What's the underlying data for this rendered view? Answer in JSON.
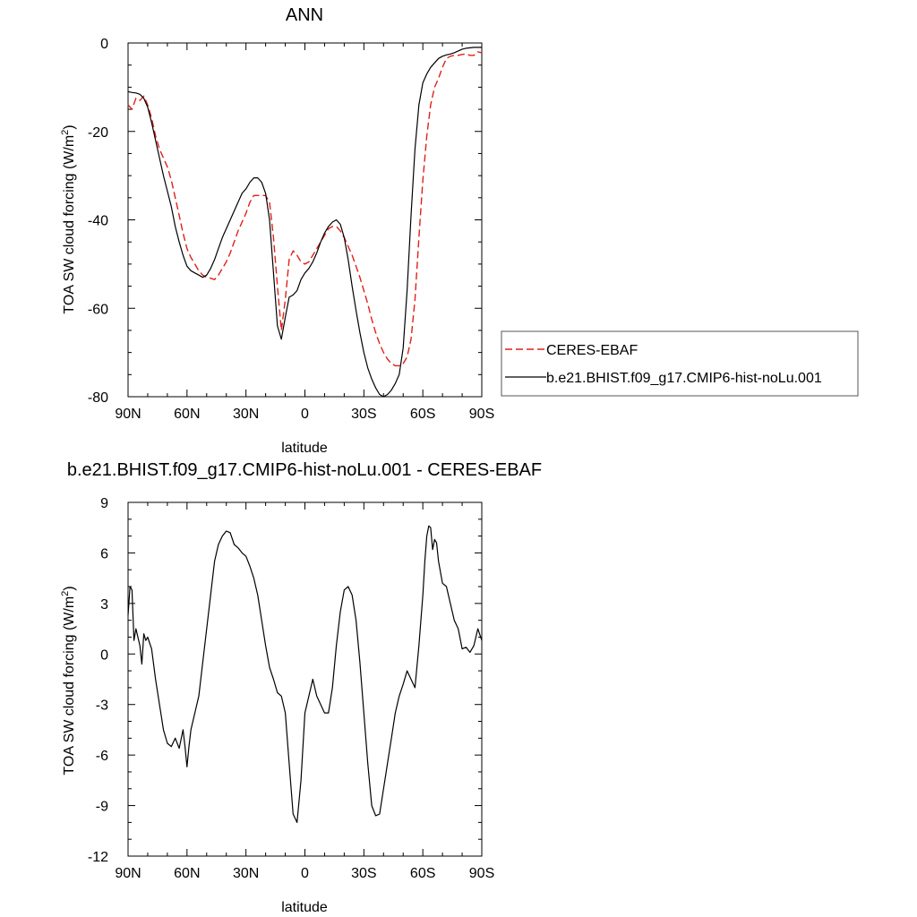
{
  "chart_data": [
    {
      "type": "line",
      "title": "ANN",
      "xlabel": "latitude",
      "ylabel_main": "TOA SW cloud forcing (W/m",
      "ylabel_sup": "2",
      "ylabel_close": ")",
      "xlim": [
        90,
        -90
      ],
      "ylim": [
        -80,
        0
      ],
      "x_ticks": [
        90,
        60,
        30,
        0,
        -30,
        -60,
        -90
      ],
      "x_tick_labels": [
        "90N",
        "60N",
        "30N",
        "0",
        "30S",
        "60S",
        "90S"
      ],
      "y_ticks": [
        0,
        -20,
        -40,
        -60,
        -80
      ],
      "y_tick_labels": [
        "0",
        "-20",
        "-40",
        "-60",
        "-80"
      ],
      "legend_position": "right-outside",
      "series": [
        {
          "name": "CERES-EBAF",
          "color": "#e0201a",
          "dash": "dashed",
          "x": [
            90,
            88,
            86,
            84,
            82,
            80,
            78,
            76,
            74,
            72,
            70,
            68,
            66,
            64,
            62,
            60,
            58,
            56,
            54,
            52,
            50,
            48,
            46,
            44,
            42,
            40,
            38,
            36,
            34,
            32,
            30,
            28,
            26,
            24,
            22,
            20,
            18,
            16,
            14,
            12,
            10,
            8,
            6,
            4,
            2,
            0,
            -2,
            -4,
            -6,
            -8,
            -10,
            -12,
            -14,
            -16,
            -18,
            -20,
            -22,
            -24,
            -26,
            -28,
            -30,
            -32,
            -34,
            -36,
            -38,
            -40,
            -42,
            -44,
            -46,
            -48,
            -50,
            -52,
            -54,
            -56,
            -58,
            -60,
            -62,
            -64,
            -66,
            -68,
            -70,
            -72,
            -74,
            -76,
            -78,
            -80,
            -82,
            -84,
            -86,
            -88,
            -90
          ],
          "y": [
            -14,
            -15,
            -12.5,
            -13,
            -12,
            -14,
            -17,
            -21,
            -24,
            -26,
            -28,
            -31,
            -35,
            -39,
            -43,
            -46.5,
            -48.5,
            -50,
            -51.5,
            -52.5,
            -53,
            -53.2,
            -53.5,
            -52.5,
            -51,
            -49.5,
            -47.5,
            -45,
            -42.5,
            -40.5,
            -38.5,
            -36,
            -34.5,
            -34.5,
            -34.5,
            -34.5,
            -36,
            -44,
            -55,
            -65,
            -58,
            -49,
            -47,
            -48,
            -49.5,
            -50,
            -49.5,
            -48,
            -46.5,
            -45,
            -43.5,
            -42,
            -41.5,
            -41.5,
            -42.5,
            -44,
            -46,
            -48,
            -50.5,
            -53,
            -56,
            -59,
            -62.5,
            -65.5,
            -68,
            -70,
            -71.5,
            -72.5,
            -73,
            -73,
            -72.5,
            -71,
            -67,
            -58,
            -44,
            -31,
            -21,
            -14,
            -10,
            -8,
            -5.5,
            -3.5,
            -3,
            -2.8,
            -2.8,
            -2.6,
            -2.5,
            -2.8,
            -2.8,
            -2,
            -2.2
          ]
        },
        {
          "name": "b.e21.BHIST.f09_g17.CMIP6-hist-noLu.001",
          "color": "#000000",
          "dash": "solid",
          "x": [
            90,
            88,
            86,
            84,
            82,
            80,
            78,
            76,
            74,
            72,
            70,
            68,
            66,
            64,
            62,
            60,
            58,
            56,
            54,
            52,
            50,
            48,
            46,
            44,
            42,
            40,
            38,
            36,
            34,
            32,
            30,
            28,
            26,
            24,
            22,
            20,
            18,
            16,
            14,
            12,
            10,
            8,
            6,
            4,
            2,
            0,
            -2,
            -4,
            -6,
            -8,
            -10,
            -12,
            -14,
            -16,
            -18,
            -20,
            -22,
            -24,
            -26,
            -28,
            -30,
            -32,
            -34,
            -36,
            -38,
            -40,
            -42,
            -44,
            -46,
            -48,
            -50,
            -52,
            -54,
            -56,
            -58,
            -60,
            -62,
            -64,
            -66,
            -68,
            -70,
            -72,
            -74,
            -76,
            -78,
            -80,
            -82,
            -84,
            -86,
            -88,
            -90
          ],
          "y": [
            -11,
            -11.2,
            -11.3,
            -11.6,
            -12.5,
            -14.5,
            -18,
            -22,
            -26,
            -30,
            -33.5,
            -37,
            -41.5,
            -45,
            -48,
            -50.5,
            -51.5,
            -52,
            -52.5,
            -53,
            -52.5,
            -51,
            -49,
            -46.5,
            -44,
            -42,
            -40,
            -38,
            -36,
            -34,
            -33,
            -31.5,
            -30.5,
            -30.5,
            -31.5,
            -34,
            -40,
            -52,
            -64,
            -67,
            -62,
            -57.5,
            -57,
            -56,
            -53.5,
            -52,
            -51,
            -49.5,
            -47.5,
            -45,
            -43,
            -41.5,
            -40.5,
            -40,
            -41,
            -44,
            -49,
            -55,
            -60.5,
            -65.5,
            -70,
            -73.5,
            -76,
            -78,
            -79.5,
            -80,
            -79.5,
            -78.5,
            -77,
            -75,
            -69,
            -56,
            -39,
            -24,
            -14,
            -9,
            -7,
            -5.5,
            -4.5,
            -3.5,
            -3,
            -2.7,
            -2.5,
            -2.2,
            -1.8,
            -1.4,
            -1.2,
            -1.1,
            -1.0,
            -1.0,
            -1.0
          ]
        }
      ]
    },
    {
      "type": "line",
      "title": "b.e21.BHIST.f09_g17.CMIP6-hist-noLu.001 - CERES-EBAF",
      "xlabel": "latitude",
      "ylabel_main": "TOA SW cloud forcing (W/m",
      "ylabel_sup": "2",
      "ylabel_close": ")",
      "xlim": [
        90,
        -90
      ],
      "ylim": [
        -12,
        9
      ],
      "x_ticks": [
        90,
        60,
        30,
        0,
        -30,
        -60,
        -90
      ],
      "x_tick_labels": [
        "90N",
        "60N",
        "30N",
        "0",
        "30S",
        "60S",
        "90S"
      ],
      "y_ticks": [
        9,
        6,
        3,
        0,
        -3,
        -6,
        -9,
        -12
      ],
      "y_tick_labels": [
        "9",
        "6",
        "3",
        "0",
        "-3",
        "-6",
        "-9",
        "-12"
      ],
      "series": [
        {
          "name": "",
          "color": "#000000",
          "dash": "solid",
          "x": [
            90,
            89,
            88,
            87,
            86,
            85,
            84,
            83,
            82,
            81,
            80,
            78,
            76,
            74,
            72,
            70,
            68,
            66,
            64,
            62,
            61,
            60,
            59,
            58,
            56,
            54,
            52,
            50,
            48,
            46,
            44,
            42,
            40,
            38,
            36,
            34,
            32,
            30,
            28,
            26,
            24,
            22,
            20,
            18,
            16,
            14,
            12,
            10,
            8,
            6,
            4,
            2,
            0,
            -2,
            -4,
            -6,
            -8,
            -10,
            -12,
            -14,
            -16,
            -18,
            -20,
            -22,
            -24,
            -26,
            -28,
            -30,
            -32,
            -34,
            -36,
            -38,
            -40,
            -42,
            -44,
            -46,
            -48,
            -50,
            -52,
            -54,
            -56,
            -58,
            -60,
            -61,
            -62,
            -63,
            -64,
            -65,
            -66,
            -67,
            -68,
            -70,
            -72,
            -74,
            -76,
            -78,
            -80,
            -82,
            -84,
            -86,
            -88,
            -90
          ],
          "y": [
            2.3,
            4.0,
            3.8,
            0.8,
            1.5,
            1.0,
            0.5,
            -0.6,
            1.2,
            0.8,
            1.0,
            0.3,
            -1.5,
            -3.0,
            -4.5,
            -5.3,
            -5.5,
            -5.0,
            -5.6,
            -4.5,
            -5.5,
            -6.7,
            -5.5,
            -4.5,
            -3.5,
            -2.5,
            -0.5,
            1.5,
            3.5,
            5.5,
            6.5,
            7.0,
            7.3,
            7.2,
            6.5,
            6.3,
            6.0,
            5.8,
            5.2,
            4.5,
            3.5,
            2.0,
            0.5,
            -0.8,
            -1.5,
            -2.3,
            -2.5,
            -3.5,
            -6.5,
            -9.5,
            -10.0,
            -7.5,
            -3.5,
            -2.5,
            -1.5,
            -2.5,
            -3.0,
            -3.5,
            -3.5,
            -2.0,
            0.5,
            2.5,
            3.8,
            4.0,
            3.5,
            2.0,
            -0.5,
            -3.5,
            -6.5,
            -9.0,
            -9.6,
            -9.5,
            -8.0,
            -6.5,
            -5.0,
            -3.5,
            -2.5,
            -1.8,
            -1.0,
            -1.5,
            -2.0,
            0.5,
            3.5,
            5.5,
            7.0,
            7.6,
            7.5,
            6.2,
            6.8,
            6.6,
            5.5,
            4.2,
            4.0,
            3.0,
            2.0,
            1.5,
            0.3,
            0.4,
            0.1,
            0.5,
            1.5,
            0.8
          ]
        }
      ]
    }
  ]
}
